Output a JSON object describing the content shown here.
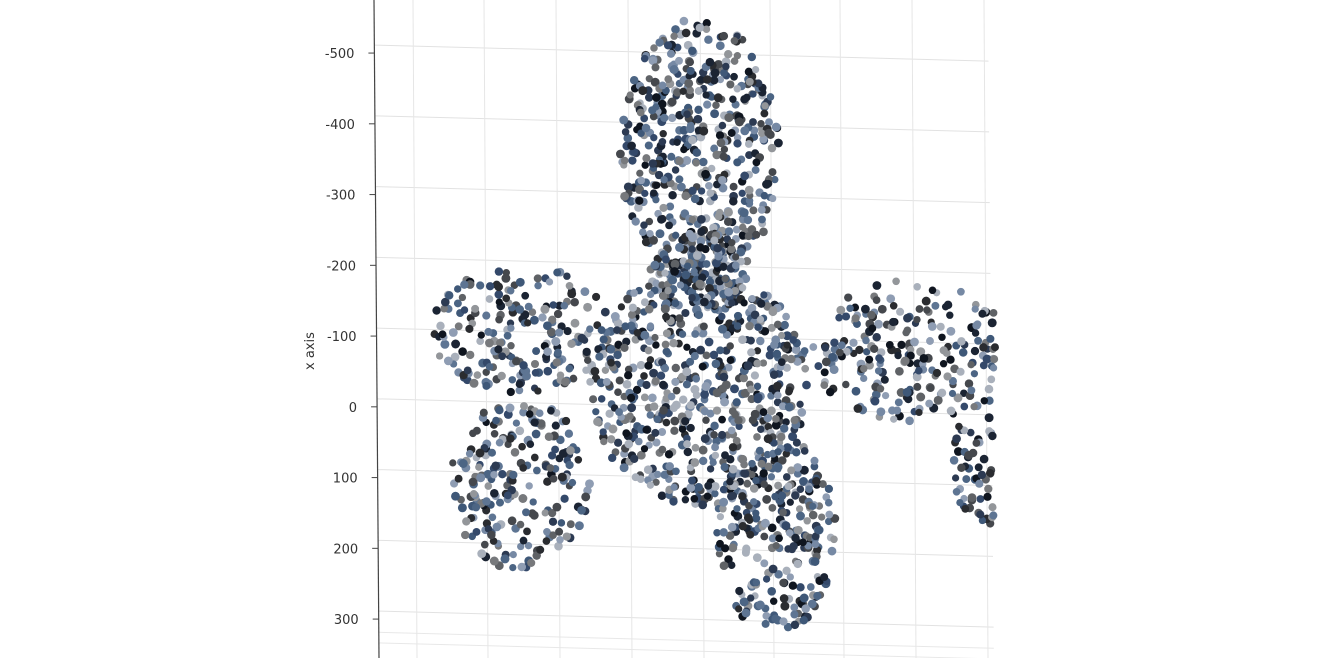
{
  "chart_data": {
    "type": "scatter",
    "title": "",
    "ylabel": "x axis",
    "ylim": [
      -575,
      355
    ],
    "y_axis_reversed": true,
    "y_ticks": [
      -500,
      -400,
      -300,
      -200,
      -100,
      0,
      100,
      200,
      300
    ],
    "y_tick_labels": [
      "-500",
      "-400",
      "-300",
      "-200",
      "-100",
      "0",
      "100",
      "200",
      "300"
    ],
    "grid": true,
    "legend": "none",
    "marker": "filled circle",
    "point_colors": [
      "#1b2433",
      "#2c3a52",
      "#34496a",
      "#3f5878",
      "#4c6584",
      "#5e7593",
      "#7689a4",
      "#8f9db3",
      "#5f6266",
      "#77797c",
      "#93969a",
      "#2a2c30",
      "#45484d",
      "#0f151f",
      "#a9b0bb"
    ],
    "shape_regions": [
      {
        "name": "head",
        "center": [
          0.0,
          -360
        ],
        "rx": 0.4,
        "ry": 190
      },
      {
        "name": "neck",
        "center": [
          0.0,
          -190
        ],
        "rx": 0.25,
        "ry": 60
      },
      {
        "name": "torso",
        "center": [
          0.0,
          -30
        ],
        "rx": 0.55,
        "ry": 170
      },
      {
        "name": "right-leg",
        "center": [
          0.38,
          180
        ],
        "rx": 0.3,
        "ry": 140
      },
      {
        "name": "left-arm",
        "center": [
          -0.9,
          -110
        ],
        "rx": 0.45,
        "ry": 90
      },
      {
        "name": "left-hand",
        "center": [
          -0.9,
          110
        ],
        "rx": 0.35,
        "ry": 120
      },
      {
        "name": "right-arm",
        "center": [
          1.05,
          -80
        ],
        "rx": 0.5,
        "ry": 100
      },
      {
        "name": "right-hand",
        "center": [
          1.45,
          80
        ],
        "rx": 0.2,
        "ry": 90
      }
    ]
  }
}
